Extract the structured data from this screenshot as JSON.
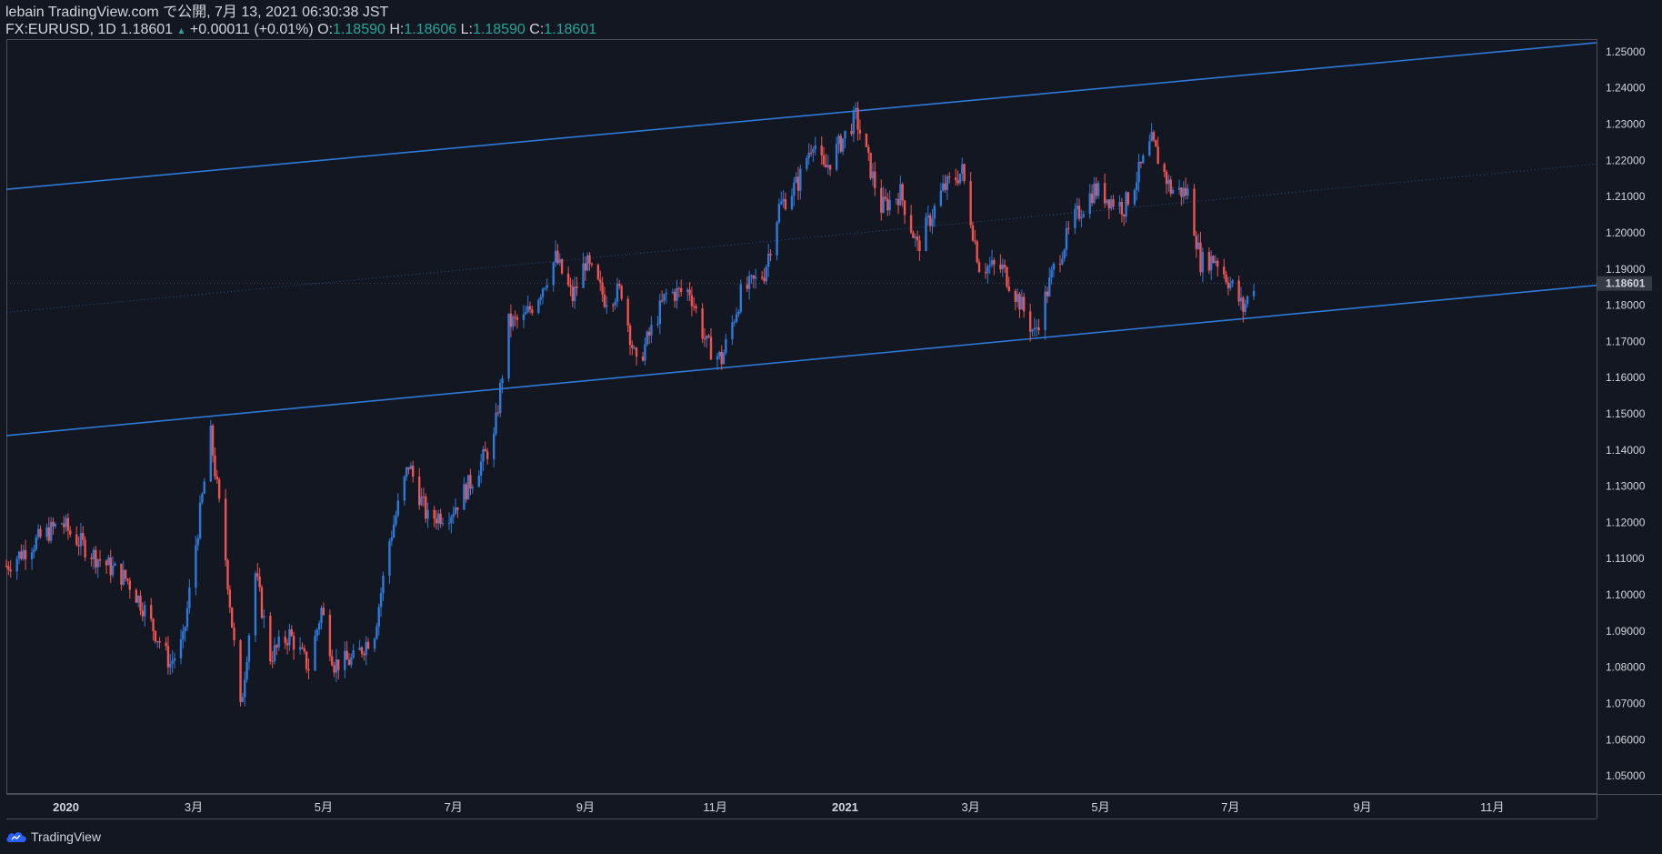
{
  "header": {
    "line1": "lebain TradingView.com で公開, 7月 13, 2021 06:30:38 JST",
    "symbol": "FX:EURUSD, 1D 1.18601",
    "arrow": "▲",
    "change": "+0.00011 (+0.01%)",
    "o_label": "O:",
    "o_value": "1.18590",
    "h_label": "H:",
    "h_value": "1.18606",
    "l_label": "L:",
    "l_value": "1.18590",
    "c_label": "C:",
    "c_value": "1.18601"
  },
  "footer": {
    "brand": "TradingView"
  },
  "colors": {
    "background": "#131722",
    "up": "#2f7ad8",
    "down": "#ef5350",
    "channel": "#2f7ad8",
    "axis_text": "#d1d4dc"
  },
  "chart_data": {
    "type": "candlestick",
    "symbol": "FX:EURUSD",
    "interval": "1D",
    "ylim": [
      1.045,
      1.2535
    ],
    "y_ticks": [
      "1.25000",
      "1.24000",
      "1.23000",
      "1.22000",
      "1.21000",
      "1.20000",
      "1.19000",
      "1.18000",
      "1.17000",
      "1.16000",
      "1.15000",
      "1.14000",
      "1.13000",
      "1.12000",
      "1.11000",
      "1.10000",
      "1.09000",
      "1.08000",
      "1.07000",
      "1.06000",
      "1.05000"
    ],
    "x_ticks": [
      {
        "label": "2020",
        "date": "2020-01-01",
        "bold": true
      },
      {
        "label": "3月",
        "date": "2020-03-01",
        "bold": false
      },
      {
        "label": "5月",
        "date": "2020-05-01",
        "bold": false
      },
      {
        "label": "7月",
        "date": "2020-07-01",
        "bold": false
      },
      {
        "label": "9月",
        "date": "2020-09-01",
        "bold": false
      },
      {
        "label": "11月",
        "date": "2020-11-01",
        "bold": false
      },
      {
        "label": "2021",
        "date": "2021-01-01",
        "bold": true
      },
      {
        "label": "3月",
        "date": "2021-03-01",
        "bold": false
      },
      {
        "label": "5月",
        "date": "2021-05-01",
        "bold": false
      },
      {
        "label": "7月",
        "date": "2021-07-01",
        "bold": false
      },
      {
        "label": "9月",
        "date": "2021-09-01",
        "bold": false
      },
      {
        "label": "11月",
        "date": "2021-11-01",
        "bold": false
      }
    ],
    "x_range": [
      "2019-12-04",
      "2021-12-20"
    ],
    "last_price": "1.18601",
    "close_path": [
      [
        "2019-12-04",
        1.108
      ],
      [
        "2019-12-16",
        1.114
      ],
      [
        "2019-12-30",
        1.12
      ],
      [
        "2020-01-03",
        1.117
      ],
      [
        "2020-01-14",
        1.111
      ],
      [
        "2020-01-30",
        1.104
      ],
      [
        "2020-02-06",
        1.097
      ],
      [
        "2020-02-19",
        1.081
      ],
      [
        "2020-02-25",
        1.087
      ],
      [
        "2020-03-02",
        1.114
      ],
      [
        "2020-03-09",
        1.144
      ],
      [
        "2020-03-16",
        1.11
      ],
      [
        "2020-03-23",
        1.068
      ],
      [
        "2020-03-30",
        1.106
      ],
      [
        "2020-04-06",
        1.083
      ],
      [
        "2020-04-15",
        1.089
      ],
      [
        "2020-04-24",
        1.08
      ],
      [
        "2020-04-30",
        1.096
      ],
      [
        "2020-05-06",
        1.081
      ],
      [
        "2020-05-15",
        1.082
      ],
      [
        "2020-05-25",
        1.09
      ],
      [
        "2020-06-01",
        1.115
      ],
      [
        "2020-06-10",
        1.136
      ],
      [
        "2020-06-19",
        1.121
      ],
      [
        "2020-06-30",
        1.123
      ],
      [
        "2020-07-09",
        1.131
      ],
      [
        "2020-07-20",
        1.143
      ],
      [
        "2020-07-27",
        1.175
      ],
      [
        "2020-08-03",
        1.176
      ],
      [
        "2020-08-10",
        1.183
      ],
      [
        "2020-08-18",
        1.193
      ],
      [
        "2020-08-26",
        1.182
      ],
      [
        "2020-09-01",
        1.192
      ],
      [
        "2020-09-10",
        1.182
      ],
      [
        "2020-09-18",
        1.184
      ],
      [
        "2020-09-25",
        1.163
      ],
      [
        "2020-10-09",
        1.183
      ],
      [
        "2020-10-20",
        1.184
      ],
      [
        "2020-10-28",
        1.169
      ],
      [
        "2020-11-04",
        1.165
      ],
      [
        "2020-11-13",
        1.183
      ],
      [
        "2020-11-24",
        1.189
      ],
      [
        "2020-12-01",
        1.207
      ],
      [
        "2020-12-10",
        1.214
      ],
      [
        "2020-12-17",
        1.226
      ],
      [
        "2020-12-22",
        1.217
      ],
      [
        "2021-01-06",
        1.232
      ],
      [
        "2021-01-18",
        1.207
      ],
      [
        "2021-01-27",
        1.211
      ],
      [
        "2021-02-04",
        1.196
      ],
      [
        "2021-02-16",
        1.212
      ],
      [
        "2021-02-25",
        1.217
      ],
      [
        "2021-03-05",
        1.191
      ],
      [
        "2021-03-16",
        1.19
      ],
      [
        "2021-03-24",
        1.181
      ],
      [
        "2021-03-31",
        1.172
      ],
      [
        "2021-04-09",
        1.19
      ],
      [
        "2021-04-19",
        1.204
      ],
      [
        "2021-04-28",
        1.212
      ],
      [
        "2021-05-12",
        1.207
      ],
      [
        "2021-05-25",
        1.225
      ],
      [
        "2021-06-03",
        1.212
      ],
      [
        "2021-06-11",
        1.211
      ],
      [
        "2021-06-17",
        1.192
      ],
      [
        "2021-06-24",
        1.193
      ],
      [
        "2021-07-02",
        1.185
      ],
      [
        "2021-07-07",
        1.179
      ],
      [
        "2021-07-12",
        1.186
      ]
    ],
    "channel": [
      {
        "name": "upper",
        "p1": [
          "2019-12-04",
          1.212
        ],
        "p2": [
          "2021-12-20",
          1.2525
        ]
      },
      {
        "name": "middle",
        "p1": [
          "2019-12-04",
          1.178
        ],
        "p2": [
          "2021-12-20",
          1.219
        ],
        "dotted": true
      },
      {
        "name": "lower",
        "p1": [
          "2019-12-04",
          1.144
        ],
        "p2": [
          "2021-12-20",
          1.1855
        ]
      }
    ]
  }
}
